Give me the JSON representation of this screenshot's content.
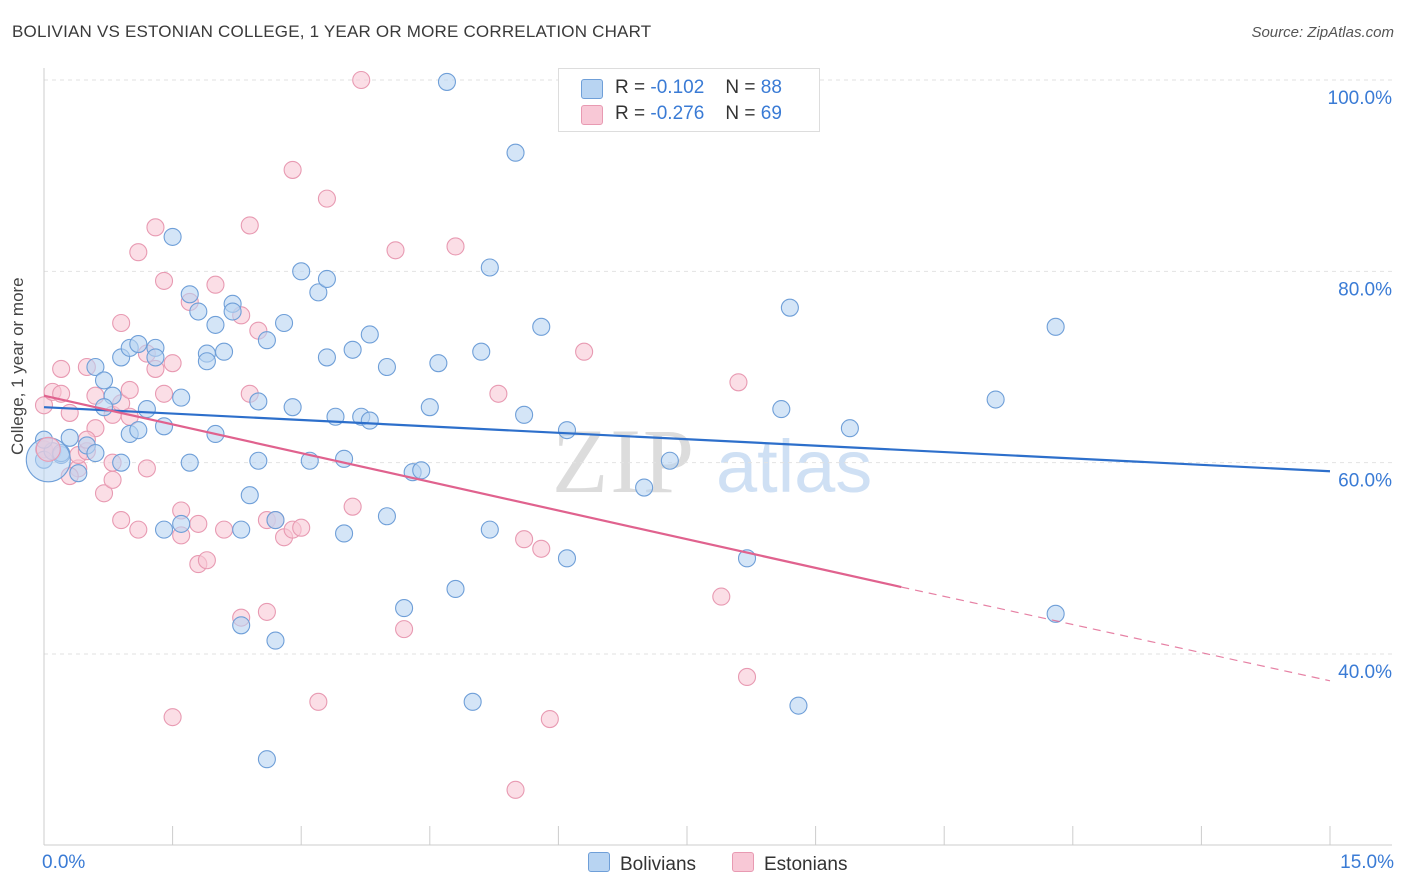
{
  "title": "BOLIVIAN VS ESTONIAN COLLEGE, 1 YEAR OR MORE CORRELATION CHART",
  "source": "Source: ZipAtlas.com",
  "watermark": {
    "zip": "ZIP",
    "atlas": "atlas"
  },
  "colors": {
    "blue_fill": "#b8d4f2",
    "blue_stroke": "#6f9fd8",
    "blue_line": "#2d6fcb",
    "pink_fill": "#f8c8d6",
    "pink_stroke": "#e89ab2",
    "pink_line": "#e0628e",
    "axis_text": "#3a7bd5",
    "grid": "#e2e2e2"
  },
  "legend_stats": [
    {
      "r_label": "R =",
      "r_value": "-0.102",
      "n_label": "N =",
      "n_value": "88",
      "color": "#b8d4f2"
    },
    {
      "r_label": "R =",
      "r_value": "-0.276",
      "n_label": "N =",
      "n_value": "69",
      "color": "#f8c8d6"
    }
  ],
  "legend": [
    {
      "label": "Bolivians",
      "color": "#b8d4f2"
    },
    {
      "label": "Estonians",
      "color": "#f8c8d6"
    }
  ],
  "chart_data": {
    "type": "scatter",
    "title": "BOLIVIAN VS ESTONIAN COLLEGE, 1 YEAR OR MORE CORRELATION CHART",
    "xlabel": "",
    "ylabel": "College, 1 year or more",
    "xlim": [
      0,
      15
    ],
    "ylim": [
      20,
      102
    ],
    "x_tick_labels": {
      "left": "0.0%",
      "right": "15.0%"
    },
    "y_ticks": [
      40,
      60,
      80,
      100
    ],
    "y_tick_labels": [
      "40.0%",
      "60.0%",
      "80.0%",
      "100.0%"
    ],
    "series": [
      {
        "name": "Bolivians",
        "trend": {
          "x0": 0,
          "y0": 65.8,
          "x1": 15,
          "y1": 59.1
        },
        "points": [
          [
            0.0,
            60.3
          ],
          [
            0.1,
            61.2
          ],
          [
            0.2,
            60.8
          ],
          [
            0.3,
            62.6
          ],
          [
            0.4,
            58.9
          ],
          [
            0.5,
            61.8
          ],
          [
            0.6,
            61.0
          ],
          [
            0.6,
            70.0
          ],
          [
            0.7,
            68.6
          ],
          [
            0.8,
            67.0
          ],
          [
            0.7,
            65.8
          ],
          [
            0.9,
            60.0
          ],
          [
            0.9,
            71.0
          ],
          [
            1.0,
            72.0
          ],
          [
            1.0,
            63.0
          ],
          [
            1.1,
            63.4
          ],
          [
            1.1,
            72.4
          ],
          [
            1.2,
            65.6
          ],
          [
            1.3,
            72.0
          ],
          [
            1.3,
            71.0
          ],
          [
            1.4,
            53.0
          ],
          [
            1.4,
            63.8
          ],
          [
            1.5,
            83.6
          ],
          [
            1.6,
            66.8
          ],
          [
            1.6,
            53.6
          ],
          [
            1.7,
            77.6
          ],
          [
            1.7,
            60.0
          ],
          [
            1.8,
            75.8
          ],
          [
            1.9,
            71.4
          ],
          [
            1.9,
            70.6
          ],
          [
            2.0,
            63.0
          ],
          [
            2.0,
            74.4
          ],
          [
            2.1,
            71.6
          ],
          [
            2.2,
            76.6
          ],
          [
            2.2,
            75.8
          ],
          [
            2.3,
            53.0
          ],
          [
            2.3,
            43.0
          ],
          [
            2.4,
            56.6
          ],
          [
            2.5,
            60.2
          ],
          [
            2.5,
            66.4
          ],
          [
            2.6,
            72.8
          ],
          [
            2.6,
            29.0
          ],
          [
            2.7,
            54.0
          ],
          [
            2.7,
            41.4
          ],
          [
            2.8,
            74.6
          ],
          [
            2.9,
            65.8
          ],
          [
            3.0,
            80.0
          ],
          [
            3.1,
            60.2
          ],
          [
            3.2,
            77.8
          ],
          [
            3.3,
            71.0
          ],
          [
            3.3,
            79.2
          ],
          [
            3.4,
            64.8
          ],
          [
            3.5,
            52.6
          ],
          [
            3.5,
            60.4
          ],
          [
            3.6,
            71.8
          ],
          [
            3.7,
            64.8
          ],
          [
            3.8,
            73.4
          ],
          [
            3.8,
            64.4
          ],
          [
            4.0,
            70.0
          ],
          [
            4.0,
            54.4
          ],
          [
            4.2,
            44.8
          ],
          [
            4.3,
            59.0
          ],
          [
            4.4,
            59.2
          ],
          [
            4.5,
            65.8
          ],
          [
            4.6,
            70.4
          ],
          [
            4.7,
            99.8
          ],
          [
            4.8,
            46.8
          ],
          [
            5.0,
            35.0
          ],
          [
            5.1,
            71.6
          ],
          [
            5.2,
            80.4
          ],
          [
            5.2,
            53.0
          ],
          [
            5.5,
            92.4
          ],
          [
            5.6,
            65.0
          ],
          [
            5.8,
            74.2
          ],
          [
            6.1,
            63.4
          ],
          [
            6.1,
            50.0
          ],
          [
            7.0,
            57.4
          ],
          [
            7.3,
            60.2
          ],
          [
            8.2,
            50.0
          ],
          [
            8.6,
            65.6
          ],
          [
            8.7,
            76.2
          ],
          [
            8.8,
            34.6
          ],
          [
            9.4,
            63.6
          ],
          [
            11.1,
            66.6
          ],
          [
            11.8,
            44.2
          ],
          [
            11.8,
            74.2
          ],
          [
            0.0,
            62.4
          ],
          [
            0.2,
            61.0
          ]
        ]
      },
      {
        "name": "Estonians",
        "trend": {
          "x0": 0,
          "y0": 67.0,
          "x1": 10.0,
          "y1": 47.0
        },
        "dashed_extension": {
          "x0": 10.0,
          "y0": 47.0,
          "x1": 15,
          "y1": 37.2
        },
        "points": [
          [
            0.0,
            66.0
          ],
          [
            0.1,
            67.4
          ],
          [
            0.2,
            69.8
          ],
          [
            0.2,
            67.2
          ],
          [
            0.3,
            65.2
          ],
          [
            0.4,
            59.4
          ],
          [
            0.4,
            60.8
          ],
          [
            0.5,
            70.0
          ],
          [
            0.5,
            61.2
          ],
          [
            0.6,
            67.0
          ],
          [
            0.6,
            63.6
          ],
          [
            0.7,
            56.8
          ],
          [
            0.8,
            60.0
          ],
          [
            0.8,
            65.0
          ],
          [
            0.9,
            66.2
          ],
          [
            0.9,
            54.0
          ],
          [
            0.9,
            74.6
          ],
          [
            1.0,
            67.6
          ],
          [
            1.0,
            64.8
          ],
          [
            1.1,
            82.0
          ],
          [
            1.1,
            53.0
          ],
          [
            1.2,
            59.4
          ],
          [
            1.2,
            71.4
          ],
          [
            1.3,
            84.6
          ],
          [
            1.3,
            69.8
          ],
          [
            1.4,
            79.0
          ],
          [
            1.4,
            67.2
          ],
          [
            1.5,
            70.4
          ],
          [
            1.5,
            33.4
          ],
          [
            1.6,
            52.4
          ],
          [
            1.6,
            55.0
          ],
          [
            1.7,
            76.8
          ],
          [
            1.8,
            53.6
          ],
          [
            1.8,
            49.4
          ],
          [
            1.9,
            49.8
          ],
          [
            2.0,
            78.6
          ],
          [
            2.1,
            53.0
          ],
          [
            2.3,
            43.8
          ],
          [
            2.3,
            75.4
          ],
          [
            2.4,
            84.8
          ],
          [
            2.4,
            67.2
          ],
          [
            2.5,
            73.8
          ],
          [
            2.6,
            54.0
          ],
          [
            2.6,
            44.4
          ],
          [
            2.7,
            54.0
          ],
          [
            2.8,
            52.2
          ],
          [
            2.9,
            53.0
          ],
          [
            2.9,
            90.6
          ],
          [
            3.0,
            53.2
          ],
          [
            3.2,
            35.0
          ],
          [
            3.3,
            87.6
          ],
          [
            3.6,
            55.4
          ],
          [
            3.7,
            100.0
          ],
          [
            4.1,
            82.2
          ],
          [
            4.2,
            42.6
          ],
          [
            4.8,
            82.6
          ],
          [
            5.3,
            67.2
          ],
          [
            5.5,
            25.8
          ],
          [
            5.6,
            52.0
          ],
          [
            5.8,
            51.0
          ],
          [
            5.9,
            33.2
          ],
          [
            6.3,
            71.6
          ],
          [
            7.9,
            46.0
          ],
          [
            8.1,
            68.4
          ],
          [
            8.2,
            37.6
          ],
          [
            0.0,
            61.4
          ],
          [
            0.3,
            58.6
          ],
          [
            0.5,
            62.4
          ],
          [
            0.8,
            58.2
          ]
        ]
      }
    ]
  }
}
